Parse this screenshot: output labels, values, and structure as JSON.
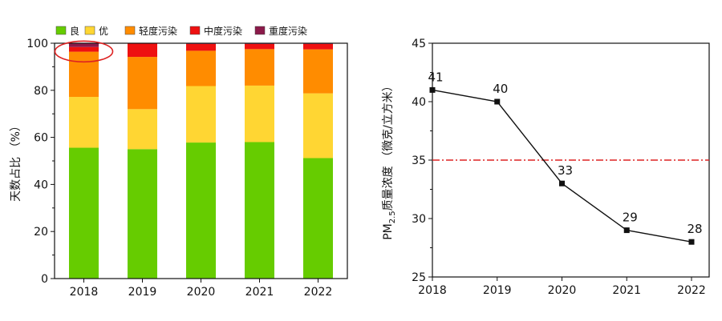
{
  "chart_data": [
    {
      "type": "bar",
      "stacked": true,
      "categories": [
        "2018",
        "2019",
        "2020",
        "2021",
        "2022"
      ],
      "series": [
        {
          "name": "良",
          "color": "#66cc00",
          "values": [
            55.6,
            55.0,
            57.8,
            58.0,
            51.2
          ]
        },
        {
          "name": "优",
          "color": "#ffd633",
          "values": [
            21.6,
            17.0,
            24.0,
            24.0,
            27.5
          ]
        },
        {
          "name": "轻度污染",
          "color": "#ff8c00",
          "values": [
            19.2,
            22.2,
            15.0,
            15.5,
            18.7
          ]
        },
        {
          "name": "中度污染",
          "color": "#ee1111",
          "values": [
            2.0,
            5.8,
            2.9,
            2.2,
            2.3
          ]
        },
        {
          "name": "重度污染",
          "color": "#8b1a4a",
          "values": [
            1.6,
            0.0,
            0.3,
            0.3,
            0.3
          ]
        }
      ],
      "ylabel": "天数占比 （%）",
      "ylim": [
        0,
        100
      ],
      "yticks": [
        0,
        20,
        40,
        60,
        80,
        100
      ],
      "legend": "top",
      "annotation": {
        "type": "ellipse",
        "color": "#dd2222",
        "target_category": "2018"
      }
    },
    {
      "type": "line",
      "x": [
        "2018",
        "2019",
        "2020",
        "2021",
        "2022"
      ],
      "values": [
        41,
        40,
        33,
        29,
        28
      ],
      "data_labels": [
        "41",
        "40",
        "33",
        "29",
        "28"
      ],
      "ylabel_main": "PM",
      "ylabel_sub": "2.5",
      "ylabel_rest": "质量浓度 （微克/立方米）",
      "ylim": [
        25,
        45
      ],
      "yticks": [
        25,
        30,
        35,
        40,
        45
      ],
      "reference_line": {
        "value": 35,
        "color": "#dd2222",
        "style": "dash-dot"
      },
      "marker": "square"
    }
  ]
}
